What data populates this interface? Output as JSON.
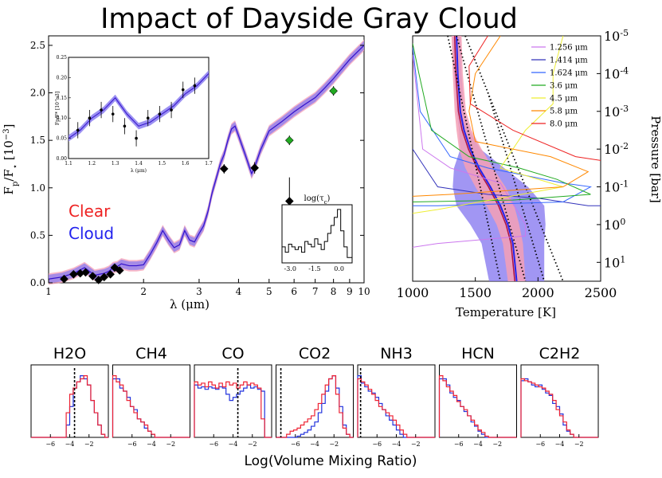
{
  "figure": {
    "title": "Impact of Dayside Gray Cloud",
    "bottom_label": "Log(Volume Mixing Ratio)",
    "colors": {
      "clear": "#ee2222",
      "cloud": "#2222ee",
      "clear_band": "#f5a0b5",
      "cloud_band": "#8a7cf0"
    }
  },
  "chart_data": [
    {
      "id": "spectrum",
      "type": "line",
      "ylabel": "Fp/F* [10^-3]",
      "xlabel": "λ (μm)",
      "xscale": "log",
      "xlim": [
        1,
        10
      ],
      "ylim": [
        0,
        2.6
      ],
      "x_ticks": [
        1,
        2,
        3,
        4,
        5,
        6,
        7,
        8,
        9,
        10
      ],
      "y_ticks": [
        0.0,
        0.5,
        1.0,
        1.5,
        2.0,
        2.5
      ],
      "legend": [
        {
          "name": "Clear",
          "color": "#ee2222"
        },
        {
          "name": "Cloud",
          "color": "#2222ee"
        }
      ],
      "series": [
        {
          "name": "model",
          "x": [
            1.0,
            1.1,
            1.2,
            1.25,
            1.3,
            1.35,
            1.4,
            1.45,
            1.5,
            1.55,
            1.6,
            1.65,
            1.7,
            1.8,
            1.9,
            2.0,
            2.1,
            2.2,
            2.3,
            2.4,
            2.5,
            2.6,
            2.7,
            2.8,
            2.9,
            3.0,
            3.1,
            3.2,
            3.3,
            3.4,
            3.5,
            3.6,
            3.7,
            3.8,
            3.9,
            4.0,
            4.2,
            4.4,
            4.5,
            4.7,
            5.0,
            5.5,
            6.0,
            6.5,
            7.0,
            7.5,
            8.0,
            9.0,
            10.0
          ],
          "y": [
            0.04,
            0.06,
            0.1,
            0.13,
            0.16,
            0.12,
            0.08,
            0.09,
            0.1,
            0.12,
            0.16,
            0.17,
            0.2,
            0.18,
            0.18,
            0.19,
            0.3,
            0.42,
            0.55,
            0.45,
            0.37,
            0.4,
            0.55,
            0.45,
            0.43,
            0.52,
            0.6,
            0.75,
            0.95,
            1.1,
            1.25,
            1.35,
            1.5,
            1.62,
            1.65,
            1.55,
            1.35,
            1.15,
            1.22,
            1.4,
            1.6,
            1.7,
            1.8,
            1.88,
            1.95,
            2.05,
            2.15,
            2.35,
            2.5
          ],
          "band_clear": 0.06,
          "band_cloud": 0.045
        }
      ],
      "data_points": [
        {
          "x": 1.12,
          "y": 0.04,
          "err": 0.02,
          "color": "#000000"
        },
        {
          "x": 1.2,
          "y": 0.09,
          "err": 0.02,
          "color": "#000000"
        },
        {
          "x": 1.26,
          "y": 0.1,
          "err": 0.02,
          "color": "#000000"
        },
        {
          "x": 1.31,
          "y": 0.11,
          "err": 0.02,
          "color": "#000000"
        },
        {
          "x": 1.38,
          "y": 0.07,
          "err": 0.02,
          "color": "#000000"
        },
        {
          "x": 1.44,
          "y": 0.03,
          "err": 0.02,
          "color": "#000000"
        },
        {
          "x": 1.5,
          "y": 0.06,
          "err": 0.02,
          "color": "#000000"
        },
        {
          "x": 1.57,
          "y": 0.09,
          "err": 0.02,
          "color": "#000000"
        },
        {
          "x": 1.62,
          "y": 0.16,
          "err": 0.02,
          "color": "#000000"
        },
        {
          "x": 1.68,
          "y": 0.13,
          "err": 0.02,
          "color": "#000000"
        },
        {
          "x": 3.6,
          "y": 1.2,
          "err": 0.05,
          "color": "#000000"
        },
        {
          "x": 4.5,
          "y": 1.21,
          "err": 0.06,
          "color": "#000000"
        },
        {
          "x": 5.8,
          "y": 0.86,
          "err": 0.25,
          "color": "#000000"
        },
        {
          "x": 5.8,
          "y": 1.5,
          "err": 0.05,
          "color": "#22aa22"
        },
        {
          "x": 8.0,
          "y": 2.02,
          "err": 0.05,
          "color": "#22aa22"
        }
      ]
    },
    {
      "id": "spectrum-inset",
      "type": "line",
      "ylabel": "Fp/F* [10^-3]",
      "xlabel": "λ (μm)",
      "xlim": [
        1.1,
        1.7
      ],
      "ylim": [
        0,
        0.25
      ],
      "x_ticks": [
        "1.1",
        "1.2",
        "1.3",
        "1.4",
        "1.5",
        "1.6",
        "1.7"
      ],
      "y_ticks": [
        "0.00",
        "0.05",
        "0.10",
        "0.15",
        "0.20",
        "0.25"
      ],
      "x": [
        1.1,
        1.15,
        1.2,
        1.25,
        1.3,
        1.35,
        1.4,
        1.45,
        1.5,
        1.55,
        1.6,
        1.65,
        1.7
      ],
      "y": [
        0.05,
        0.07,
        0.1,
        0.12,
        0.15,
        0.11,
        0.08,
        0.09,
        0.11,
        0.13,
        0.16,
        0.18,
        0.21
      ],
      "points": [
        {
          "x": 1.14,
          "y": 0.07,
          "err": 0.02
        },
        {
          "x": 1.19,
          "y": 0.1,
          "err": 0.02
        },
        {
          "x": 1.24,
          "y": 0.12,
          "err": 0.02
        },
        {
          "x": 1.29,
          "y": 0.11,
          "err": 0.02
        },
        {
          "x": 1.34,
          "y": 0.08,
          "err": 0.02
        },
        {
          "x": 1.39,
          "y": 0.05,
          "err": 0.02
        },
        {
          "x": 1.44,
          "y": 0.1,
          "err": 0.02
        },
        {
          "x": 1.49,
          "y": 0.11,
          "err": 0.02
        },
        {
          "x": 1.54,
          "y": 0.12,
          "err": 0.02
        },
        {
          "x": 1.59,
          "y": 0.17,
          "err": 0.02
        },
        {
          "x": 1.64,
          "y": 0.18,
          "err": 0.02
        }
      ]
    },
    {
      "id": "tau-inset",
      "type": "histogram",
      "title": "log(τc)",
      "xlim": [
        -3.5,
        0.8
      ],
      "x_ticks": [
        "-3.0",
        "-1.5",
        "0.0"
      ],
      "bin_edges": [
        -3.5,
        -3.3,
        -3.1,
        -2.9,
        -2.7,
        -2.5,
        -2.3,
        -2.1,
        -1.9,
        -1.7,
        -1.5,
        -1.3,
        -1.1,
        -0.9,
        -0.7,
        -0.5,
        -0.3,
        -0.1,
        0.1,
        0.3,
        0.5,
        0.8
      ],
      "counts": [
        0.3,
        0.2,
        0.35,
        0.3,
        0.25,
        0.3,
        0.2,
        0.4,
        0.35,
        0.3,
        0.45,
        0.35,
        0.25,
        0.4,
        0.55,
        0.7,
        0.85,
        1.0,
        0.6,
        0.3,
        0.1
      ]
    },
    {
      "id": "tp-profile",
      "type": "line",
      "xlabel": "Temperature [K]",
      "ylabel": "Pressure [bar]",
      "xlim": [
        1000,
        2500
      ],
      "x_ticks": [
        "1000",
        "1500",
        "2000",
        "2500"
      ],
      "y_ticks": [
        "10-5",
        "10-4",
        "10-3",
        "10-2",
        "10-1",
        "10^0",
        "10^1"
      ],
      "y_ticks_fmt": [
        {
          "base": "10",
          "exp": "-5"
        },
        {
          "base": "10",
          "exp": "-4"
        },
        {
          "base": "10",
          "exp": "-3"
        },
        {
          "base": "10",
          "exp": "-2"
        },
        {
          "base": "10",
          "exp": "-1"
        },
        {
          "base": "10",
          "exp": "0"
        },
        {
          "base": "10",
          "exp": "1"
        }
      ],
      "logp_range": [
        -5,
        1.5
      ],
      "legend": [
        {
          "label": "1.256 μm",
          "color": "#cc77ee"
        },
        {
          "label": "1.414 μm",
          "color": "#3333bb"
        },
        {
          "label": "1.624 μm",
          "color": "#3366ff"
        },
        {
          "label": "3.6 μm",
          "color": "#22aa22"
        },
        {
          "label": "4.5 μm",
          "color": "#eeee33"
        },
        {
          "label": "5.8 μm",
          "color": "#ff8800"
        },
        {
          "label": "8.0 μm",
          "color": "#ee2222"
        }
      ],
      "profile_median": {
        "T": [
          1350,
          1360,
          1380,
          1410,
          1460,
          1530,
          1620,
          1700,
          1760,
          1800,
          1830
        ],
        "logp": [
          -5,
          -4,
          -3,
          -2.5,
          -2,
          -1.5,
          -1,
          -0.5,
          0,
          0.5,
          1.5
        ]
      },
      "band_halfwidth_clear": [
        40,
        40,
        45,
        60,
        90,
        110,
        120,
        110,
        90,
        80,
        70
      ],
      "band_halfwidth_cloud": [
        30,
        30,
        30,
        40,
        80,
        200,
        300,
        350,
        300,
        250,
        220
      ]
    },
    {
      "id": "vmr-histograms",
      "type": "histogram",
      "xlim": [
        -8,
        0
      ],
      "x_ticks": [
        "−6",
        "−4",
        "−2"
      ],
      "panels": [
        {
          "label": "H2O",
          "true_value": -3.5,
          "red": [
            0,
            0,
            0,
            0,
            0,
            0,
            0,
            0,
            0,
            0,
            0.4,
            0.7,
            0.8,
            0.9,
            0.95,
            1.0,
            0.85,
            0.6,
            0.4,
            0.2,
            0.05,
            0
          ],
          "blue": [
            0,
            0,
            0,
            0,
            0,
            0,
            0,
            0,
            0,
            0,
            0.2,
            0.5,
            0.8,
            0.9,
            1.0,
            0.95,
            0.85,
            0.6,
            0.4,
            0.2,
            0.05,
            0
          ]
        },
        {
          "label": "CH4",
          "true_value": null,
          "red": [
            1.0,
            0.9,
            0.85,
            0.75,
            0.6,
            0.5,
            0.4,
            0.3,
            0.25,
            0.2,
            0.1,
            0.05,
            0,
            0,
            0,
            0,
            0,
            0,
            0,
            0,
            0,
            0
          ],
          "blue": [
            0.95,
            0.95,
            0.8,
            0.75,
            0.65,
            0.5,
            0.45,
            0.3,
            0.25,
            0.15,
            0.1,
            0.05,
            0,
            0,
            0,
            0,
            0,
            0,
            0,
            0,
            0,
            0
          ]
        },
        {
          "label": "CO",
          "true_value": -3.5,
          "red": [
            0.9,
            0.85,
            0.88,
            0.82,
            0.9,
            0.85,
            0.8,
            0.88,
            0.82,
            0.9,
            0.85,
            0.88,
            0.8,
            0.85,
            0.9,
            0.85,
            0.88,
            0.85,
            0.8,
            0.3,
            0,
            0
          ],
          "blue": [
            0.85,
            0.8,
            0.82,
            0.78,
            0.82,
            0.8,
            0.78,
            0.82,
            0.8,
            0.7,
            0.6,
            0.65,
            0.7,
            0.75,
            0.8,
            0.85,
            0.8,
            0.82,
            0.78,
            0.75,
            0,
            0
          ]
        },
        {
          "label": "CO2",
          "true_value": -7.5,
          "red": [
            0,
            0,
            0,
            0.05,
            0.1,
            0.12,
            0.15,
            0.2,
            0.25,
            0.3,
            0.35,
            0.45,
            0.55,
            0.7,
            0.85,
            0.95,
            1.0,
            0.7,
            0.4,
            0.15,
            0.05,
            0
          ],
          "blue": [
            0,
            0,
            0,
            0,
            0,
            0,
            0.02,
            0.05,
            0.08,
            0.12,
            0.18,
            0.25,
            0.4,
            0.55,
            0.75,
            0.95,
            1.0,
            0.8,
            0.5,
            0.2,
            0.05,
            0
          ]
        },
        {
          "label": "NH3",
          "true_value": -7.7,
          "red": [
            0.95,
            0.9,
            0.85,
            0.78,
            0.7,
            0.6,
            0.5,
            0.45,
            0.4,
            0.35,
            0.28,
            0.2,
            0.12,
            0.05,
            0,
            0,
            0,
            0,
            0,
            0,
            0,
            0
          ],
          "blue": [
            1.0,
            0.88,
            0.82,
            0.75,
            0.72,
            0.65,
            0.55,
            0.45,
            0.35,
            0.28,
            0.2,
            0.12,
            0.05,
            0,
            0,
            0,
            0,
            0,
            0,
            0,
            0,
            0
          ]
        },
        {
          "label": "HCN",
          "true_value": null,
          "red": [
            1.0,
            0.92,
            0.82,
            0.75,
            0.68,
            0.58,
            0.5,
            0.45,
            0.35,
            0.28,
            0.2,
            0.12,
            0.08,
            0.02,
            0,
            0,
            0,
            0,
            0,
            0,
            0,
            0
          ],
          "blue": [
            0.95,
            0.95,
            0.85,
            0.72,
            0.65,
            0.6,
            0.5,
            0.42,
            0.35,
            0.25,
            0.18,
            0.1,
            0.05,
            0,
            0,
            0,
            0,
            0,
            0,
            0,
            0,
            0
          ]
        },
        {
          "label": "C2H2",
          "true_value": null,
          "red": [
            0.95,
            0.92,
            0.9,
            0.88,
            0.85,
            0.82,
            0.8,
            0.75,
            0.7,
            0.6,
            0.45,
            0.35,
            0.25,
            0.12,
            0.05,
            0,
            0,
            0,
            0,
            0,
            0,
            0
          ],
          "blue": [
            0.92,
            0.95,
            0.9,
            0.85,
            0.82,
            0.85,
            0.78,
            0.72,
            0.68,
            0.55,
            0.5,
            0.38,
            0.2,
            0.1,
            0.05,
            0,
            0,
            0,
            0,
            0,
            0,
            0
          ]
        }
      ]
    }
  ]
}
